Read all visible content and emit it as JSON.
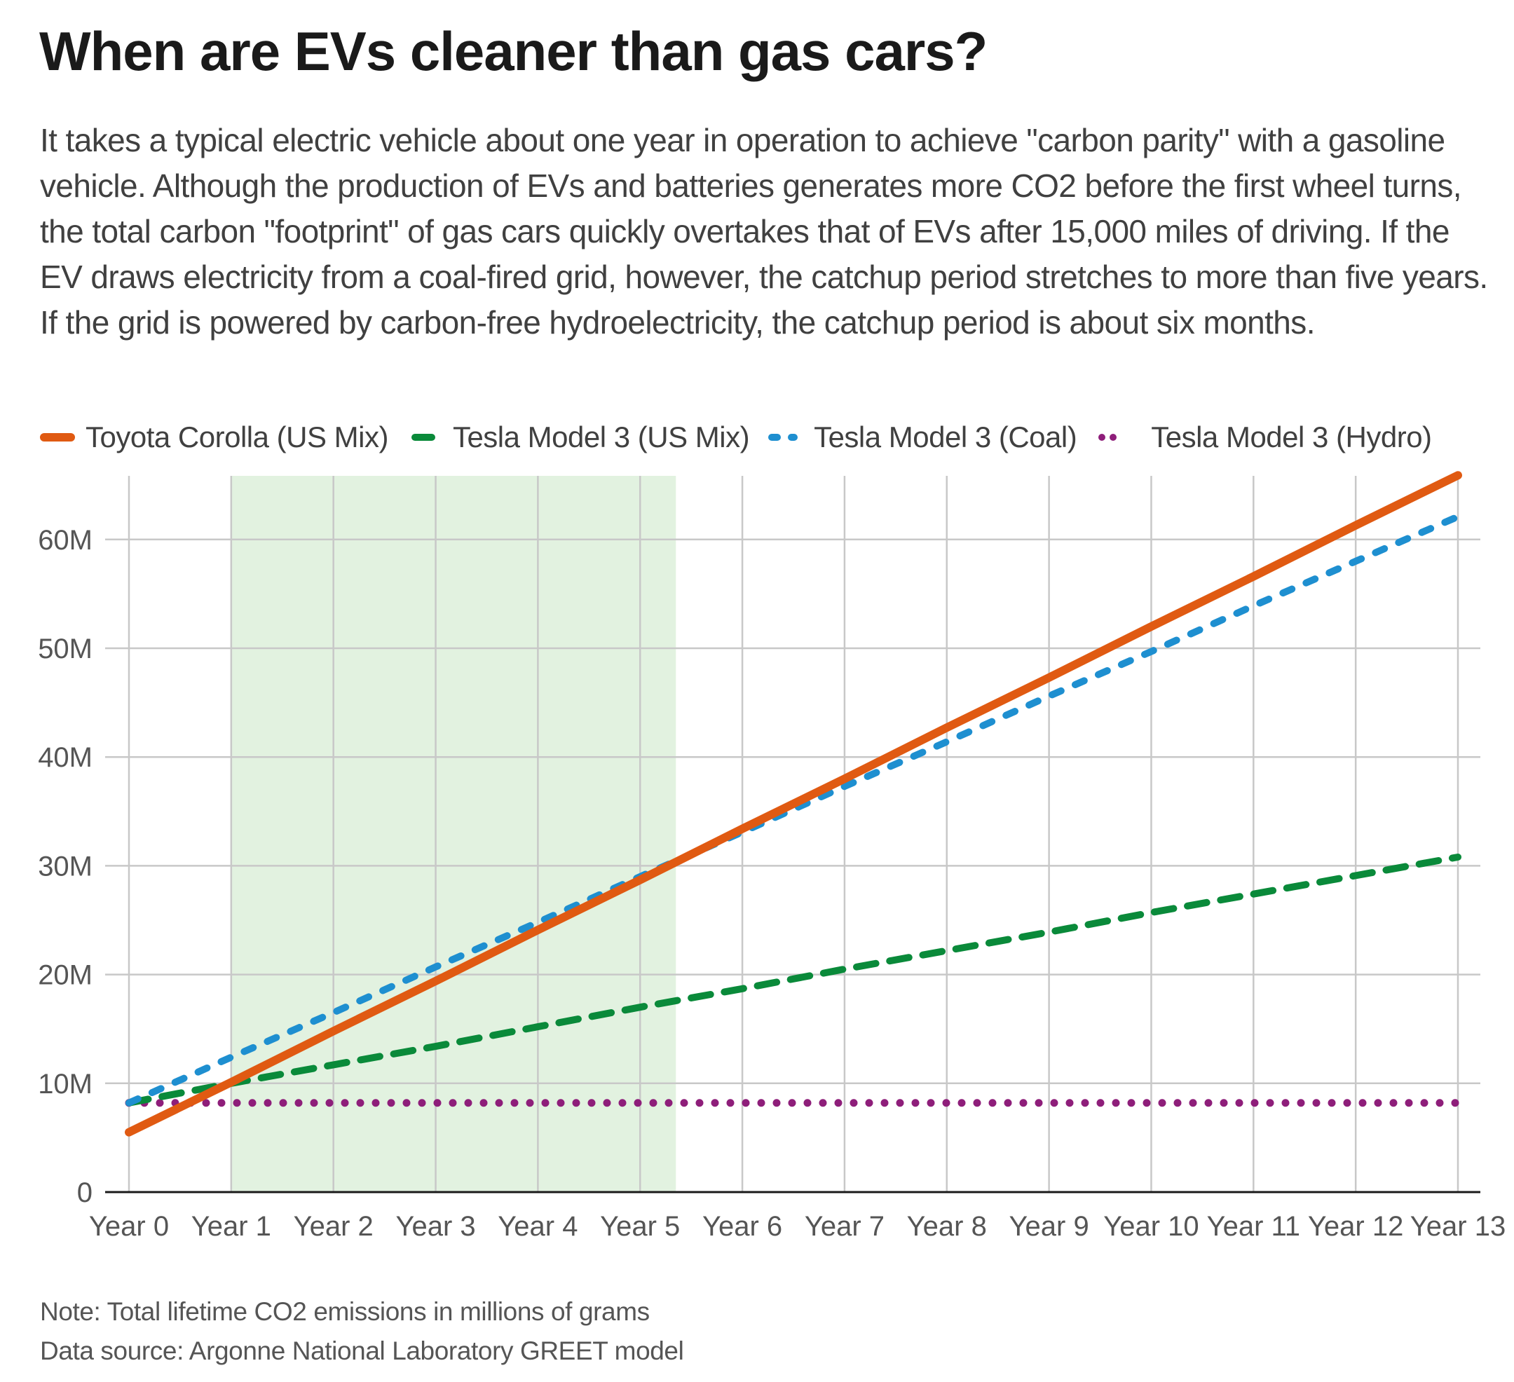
{
  "title": "When are EVs cleaner than gas cars?",
  "subtitle": "It takes a typical electric vehicle about one year in operation to achieve \"carbon parity\" with a gasoline vehicle. Although the production of EVs and batteries generates more CO2 before the first wheel turns, the total carbon \"footprint\" of gas cars quickly overtakes that of EVs after 15,000 miles of driving. If the EV draws electricity from a coal-fired grid, however, the catchup period stretches to more than five years. If the grid is powered by carbon-free hydroelectricity, the catchup period is about six months.",
  "notes": {
    "note": "Note: Total lifetime CO2 emissions in millions of grams",
    "source": "Data source: Argonne National Laboratory GREET model"
  },
  "chart_data": {
    "type": "line",
    "title": "When are EVs cleaner than gas cars?",
    "xlabel": "",
    "ylabel": "Total lifetime CO2 emissions (millions of grams)",
    "categories": [
      "Year 0",
      "Year 1",
      "Year 2",
      "Year 3",
      "Year 4",
      "Year 5",
      "Year 6",
      "Year 7",
      "Year 8",
      "Year 9",
      "Year 10",
      "Year 11",
      "Year 12",
      "Year 13"
    ],
    "x": [
      0,
      1,
      2,
      3,
      4,
      5,
      6,
      7,
      8,
      9,
      10,
      11,
      12,
      13
    ],
    "ylim": [
      0,
      65
    ],
    "yticks": [
      0,
      10,
      20,
      30,
      40,
      50,
      60
    ],
    "ytick_labels": [
      "0",
      "10M",
      "20M",
      "30M",
      "40M",
      "50M",
      "60M"
    ],
    "grid": true,
    "legend_position": "top-left",
    "shaded_region": {
      "x_start": 1,
      "x_end": 5.35,
      "color": "#e2f2e0",
      "meaning": "catchup period for coal-grid EV"
    },
    "series": [
      {
        "name": "Toyota Corolla (US Mix)",
        "color": "#e05a12",
        "style": "solid",
        "values": [
          5.5,
          10.1,
          14.8,
          19.4,
          24.1,
          28.7,
          33.4,
          38.0,
          42.7,
          47.3,
          52.0,
          56.6,
          61.3,
          65.9
        ]
      },
      {
        "name": "Tesla Model 3 (US Mix)",
        "color": "#0a8a3a",
        "style": "dashed",
        "values": [
          8.2,
          10.0,
          11.7,
          13.4,
          15.2,
          17.0,
          18.7,
          20.5,
          22.2,
          23.9,
          25.7,
          27.4,
          29.1,
          30.8
        ]
      },
      {
        "name": "Tesla Model 3 (Coal)",
        "color": "#1e8fd0",
        "style": "short-dashed",
        "values": [
          8.2,
          12.4,
          16.5,
          20.7,
          24.8,
          29.0,
          33.1,
          37.3,
          41.4,
          45.6,
          49.7,
          53.9,
          58.0,
          62.1
        ]
      },
      {
        "name": "Tesla Model 3 (Hydro)",
        "color": "#8e1e7a",
        "style": "dotted",
        "values": [
          8.2,
          8.2,
          8.2,
          8.2,
          8.2,
          8.2,
          8.2,
          8.2,
          8.2,
          8.2,
          8.2,
          8.2,
          8.2,
          8.2
        ]
      }
    ]
  }
}
